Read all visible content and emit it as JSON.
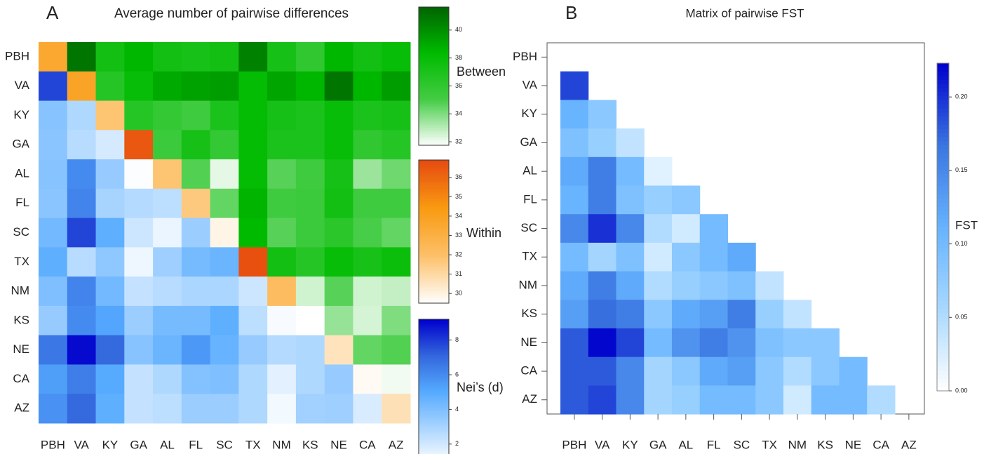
{
  "chart_data": [
    {
      "type": "heatmap",
      "panel": "A",
      "title": "Average number of pairwise differences",
      "categories": [
        "PBH",
        "VA",
        "KY",
        "GA",
        "AL",
        "FL",
        "SC",
        "TX",
        "NM",
        "KS",
        "NE",
        "CA",
        "AZ"
      ],
      "values": [
        [
          33.5,
          41,
          37.5,
          38.5,
          37.5,
          37.2,
          37.5,
          40.5,
          37.3,
          36,
          38.5,
          37.5,
          38
        ],
        [
          7.8,
          33.8,
          36.5,
          38,
          39,
          39.3,
          39.5,
          38.2,
          39.2,
          38.5,
          41,
          38.5,
          39.5
        ],
        [
          3.8,
          2.8,
          31.8,
          36.5,
          35.8,
          35.3,
          37,
          38.2,
          37.3,
          37,
          38,
          37,
          37.3
        ],
        [
          3.7,
          2.6,
          1.9,
          36.5,
          35.5,
          37.3,
          35.8,
          38.2,
          37,
          37,
          38,
          36,
          36.5
        ],
        [
          3.8,
          6.0,
          3.4,
          1.0,
          31.8,
          34.8,
          32.2,
          38.2,
          34.7,
          35.3,
          37.3,
          33.5,
          34.3
        ],
        [
          3.7,
          6.2,
          3.0,
          2.7,
          2.5,
          31.6,
          34.5,
          38.6,
          35.3,
          35.5,
          37.5,
          35.3,
          35.3
        ],
        [
          4.3,
          7.8,
          4.8,
          2.1,
          1.4,
          3.3,
          29.9,
          38.4,
          34.7,
          35.5,
          36.3,
          35,
          34.5
        ],
        [
          4.8,
          2.6,
          3.6,
          1.3,
          3.2,
          4.2,
          4.5,
          36.7,
          37.5,
          36.5,
          38,
          37.2,
          37.8
        ],
        [
          4.0,
          6.2,
          4.3,
          2.3,
          2.6,
          2.9,
          2.9,
          2.1,
          32.2,
          32.6,
          34.7,
          32.6,
          32.8
        ],
        [
          3.4,
          6.0,
          5.2,
          3.3,
          4.2,
          4.2,
          4.8,
          2.5,
          1.1,
          29.5,
          33.6,
          32.5,
          34
        ],
        [
          6.6,
          9.0,
          7.0,
          3.8,
          4.5,
          5.6,
          4.6,
          3.4,
          2.7,
          2.8,
          30.6,
          34.5,
          34.8
        ],
        [
          5.4,
          6.4,
          5.0,
          2.3,
          2.8,
          3.9,
          4.0,
          2.8,
          1.6,
          2.8,
          3.4,
          29.7,
          32
        ],
        [
          5.8,
          7.0,
          4.8,
          2.3,
          2.5,
          3.3,
          3.3,
          2.8,
          1.2,
          3.1,
          3.2,
          1.8,
          30.7
        ]
      ],
      "scales": {
        "upper": {
          "label": "Between",
          "lim": [
            31.75,
            41.65
          ],
          "ticks": [
            32,
            34,
            36,
            38,
            40
          ],
          "colors": [
            "#ffffff",
            "#44cc44",
            "#00bb00",
            "#006400"
          ]
        },
        "diagonal": {
          "label": "Within",
          "lim": [
            29.5,
            36.9
          ],
          "ticks": [
            30,
            31,
            32,
            33,
            34,
            35,
            36
          ],
          "colors": [
            "#ffffff",
            "#fdc068",
            "#f99a10",
            "#e64a10"
          ]
        },
        "lower": {
          "label": "Nei’s (d)",
          "lim": [
            0.9,
            9.2
          ],
          "ticks": [
            2,
            4,
            6,
            8
          ],
          "colors": [
            "#ffffff",
            "#a8d4ff",
            "#55aaff",
            "#3366dd",
            "#0000cc"
          ]
        }
      }
    },
    {
      "type": "heatmap",
      "panel": "B",
      "title": "Matrix of pairwise FST",
      "categories": [
        "PBH",
        "VA",
        "KY",
        "GA",
        "AL",
        "FL",
        "SC",
        "TX",
        "NM",
        "KS",
        "NE",
        "CA",
        "AZ"
      ],
      "values": [
        [
          null,
          null,
          null,
          null,
          null,
          null,
          null,
          null,
          null,
          null,
          null,
          null,
          null
        ],
        [
          0.19,
          null,
          null,
          null,
          null,
          null,
          null,
          null,
          null,
          null,
          null,
          null,
          null
        ],
        [
          0.11,
          0.08,
          null,
          null,
          null,
          null,
          null,
          null,
          null,
          null,
          null,
          null,
          null
        ],
        [
          0.09,
          0.07,
          0.04,
          null,
          null,
          null,
          null,
          null,
          null,
          null,
          null,
          null,
          null
        ],
        [
          0.12,
          0.16,
          0.1,
          0.02,
          null,
          null,
          null,
          null,
          null,
          null,
          null,
          null,
          null
        ],
        [
          0.11,
          0.16,
          0.09,
          0.07,
          0.08,
          null,
          null,
          null,
          null,
          null,
          null,
          null,
          null
        ],
        [
          0.15,
          0.2,
          0.15,
          0.05,
          0.03,
          0.1,
          null,
          null,
          null,
          null,
          null,
          null,
          null
        ],
        [
          0.1,
          0.06,
          0.09,
          0.03,
          0.08,
          0.1,
          0.12,
          null,
          null,
          null,
          null,
          null,
          null
        ],
        [
          0.12,
          0.16,
          0.12,
          0.05,
          0.07,
          0.08,
          0.09,
          0.04,
          null,
          null,
          null,
          null,
          null
        ],
        [
          0.13,
          0.17,
          0.16,
          0.08,
          0.12,
          0.13,
          0.16,
          0.07,
          0.04,
          null,
          null,
          null,
          null
        ],
        [
          0.18,
          0.22,
          0.19,
          0.1,
          0.14,
          0.16,
          0.14,
          0.09,
          0.08,
          0.08,
          null,
          null,
          null
        ],
        [
          0.18,
          0.18,
          0.15,
          0.06,
          0.08,
          0.12,
          0.13,
          0.08,
          0.05,
          0.08,
          0.1,
          null,
          null
        ],
        [
          0.18,
          0.19,
          0.15,
          0.06,
          0.07,
          0.1,
          0.1,
          0.08,
          0.03,
          0.1,
          0.1,
          0.05,
          null
        ]
      ],
      "colorbar": {
        "label": "FST",
        "lim": [
          0,
          0.223
        ],
        "ticks": [
          {
            "value": 0,
            "label": "0.00"
          },
          {
            "value": 0.05,
            "label": "0.05"
          },
          {
            "value": 0.1,
            "label": "0.10"
          },
          {
            "value": 0.15,
            "label": "0.15"
          },
          {
            "value": 0.2,
            "label": "0.20"
          }
        ],
        "colors": [
          "#ffffff",
          "#a8d8ff",
          "#66b3ff",
          "#3a75e0",
          "#0000cc"
        ]
      }
    }
  ]
}
